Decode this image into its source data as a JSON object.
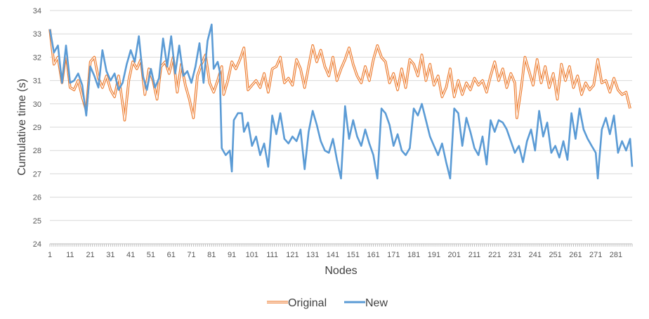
{
  "chart_data": {
    "type": "line",
    "xlabel": "Nodes",
    "ylabel": "Cumulative time (s)",
    "xlim": [
      1,
      289
    ],
    "ylim": [
      24,
      34
    ],
    "ytick_step": 1,
    "x_tick_labels": [
      "1",
      "11",
      "21",
      "31",
      "41",
      "51",
      "61",
      "71",
      "81",
      "91",
      "101",
      "111",
      "121",
      "131",
      "141",
      "151",
      "161",
      "171",
      "181",
      "191",
      "201",
      "211",
      "221",
      "231",
      "241",
      "251",
      "261",
      "271",
      "281"
    ],
    "legend_position": "bottom",
    "grid": true,
    "series": [
      {
        "name": "Original",
        "color": "#ED7D31",
        "style": "double-line",
        "keypoints": [
          [
            1,
            33.2
          ],
          [
            3,
            31.7
          ],
          [
            5,
            32.0
          ],
          [
            7,
            30.9
          ],
          [
            9,
            32.2
          ],
          [
            11,
            30.7
          ],
          [
            13,
            30.6
          ],
          [
            15,
            31.0
          ],
          [
            17,
            30.3
          ],
          [
            19,
            29.7
          ],
          [
            21,
            31.8
          ],
          [
            23,
            32.0
          ],
          [
            25,
            31.1
          ],
          [
            27,
            30.7
          ],
          [
            29,
            31.2
          ],
          [
            31,
            30.6
          ],
          [
            33,
            30.3
          ],
          [
            35,
            31.2
          ],
          [
            37,
            30.0
          ],
          [
            38,
            29.3
          ],
          [
            40,
            31.0
          ],
          [
            42,
            31.8
          ],
          [
            44,
            31.5
          ],
          [
            46,
            31.9
          ],
          [
            48,
            30.4
          ],
          [
            50,
            31.5
          ],
          [
            52,
            31.0
          ],
          [
            54,
            30.2
          ],
          [
            56,
            31.6
          ],
          [
            58,
            31.8
          ],
          [
            60,
            31.3
          ],
          [
            62,
            32.0
          ],
          [
            64,
            30.5
          ],
          [
            66,
            31.7
          ],
          [
            68,
            30.8
          ],
          [
            70,
            30.2
          ],
          [
            72,
            29.4
          ],
          [
            74,
            31.2
          ],
          [
            76,
            31.7
          ],
          [
            78,
            32.1
          ],
          [
            80,
            30.9
          ],
          [
            82,
            30.5
          ],
          [
            84,
            31.0
          ],
          [
            86,
            31.6
          ],
          [
            87,
            30.4
          ],
          [
            89,
            31.0
          ],
          [
            91,
            31.8
          ],
          [
            93,
            31.5
          ],
          [
            95,
            31.9
          ],
          [
            97,
            32.4
          ],
          [
            99,
            30.6
          ],
          [
            101,
            30.8
          ],
          [
            103,
            31.0
          ],
          [
            105,
            30.7
          ],
          [
            107,
            31.3
          ],
          [
            109,
            30.5
          ],
          [
            111,
            31.5
          ],
          [
            113,
            31.6
          ],
          [
            115,
            32.0
          ],
          [
            117,
            30.9
          ],
          [
            119,
            31.1
          ],
          [
            121,
            30.8
          ],
          [
            123,
            31.9
          ],
          [
            125,
            31.5
          ],
          [
            127,
            30.7
          ],
          [
            129,
            31.6
          ],
          [
            131,
            32.5
          ],
          [
            133,
            31.8
          ],
          [
            135,
            32.3
          ],
          [
            137,
            31.6
          ],
          [
            139,
            31.2
          ],
          [
            141,
            32.0
          ],
          [
            143,
            31.0
          ],
          [
            145,
            31.5
          ],
          [
            147,
            31.9
          ],
          [
            149,
            32.4
          ],
          [
            151,
            31.7
          ],
          [
            153,
            31.2
          ],
          [
            155,
            30.9
          ],
          [
            157,
            31.6
          ],
          [
            159,
            31.0
          ],
          [
            161,
            31.9
          ],
          [
            163,
            32.5
          ],
          [
            165,
            32.0
          ],
          [
            167,
            31.8
          ],
          [
            169,
            30.9
          ],
          [
            171,
            31.3
          ],
          [
            173,
            30.6
          ],
          [
            175,
            31.5
          ],
          [
            177,
            30.7
          ],
          [
            179,
            31.9
          ],
          [
            181,
            31.7
          ],
          [
            183,
            31.2
          ],
          [
            185,
            32.1
          ],
          [
            187,
            31.0
          ],
          [
            189,
            31.7
          ],
          [
            191,
            30.8
          ],
          [
            193,
            31.2
          ],
          [
            195,
            30.3
          ],
          [
            197,
            30.7
          ],
          [
            199,
            31.5
          ],
          [
            201,
            30.3
          ],
          [
            203,
            31.0
          ],
          [
            205,
            30.4
          ],
          [
            207,
            30.9
          ],
          [
            209,
            30.6
          ],
          [
            211,
            31.1
          ],
          [
            213,
            30.8
          ],
          [
            215,
            31.0
          ],
          [
            217,
            30.5
          ],
          [
            219,
            31.2
          ],
          [
            221,
            31.8
          ],
          [
            223,
            31.0
          ],
          [
            225,
            31.5
          ],
          [
            227,
            30.7
          ],
          [
            229,
            31.3
          ],
          [
            231,
            30.9
          ],
          [
            232,
            29.4
          ],
          [
            234,
            30.6
          ],
          [
            236,
            32.0
          ],
          [
            238,
            31.4
          ],
          [
            240,
            30.8
          ],
          [
            242,
            31.9
          ],
          [
            244,
            30.9
          ],
          [
            246,
            31.6
          ],
          [
            248,
            30.7
          ],
          [
            250,
            31.3
          ],
          [
            252,
            30.2
          ],
          [
            254,
            31.7
          ],
          [
            256,
            31.0
          ],
          [
            258,
            31.6
          ],
          [
            260,
            30.7
          ],
          [
            262,
            31.2
          ],
          [
            264,
            30.4
          ],
          [
            266,
            30.9
          ],
          [
            268,
            30.6
          ],
          [
            270,
            30.8
          ],
          [
            272,
            31.9
          ],
          [
            274,
            30.9
          ],
          [
            276,
            31.0
          ],
          [
            278,
            30.5
          ],
          [
            280,
            31.1
          ],
          [
            282,
            30.6
          ],
          [
            284,
            30.4
          ],
          [
            286,
            30.5
          ],
          [
            288,
            29.8
          ]
        ]
      },
      {
        "name": "New",
        "color": "#5B9BD5",
        "style": "solid",
        "keypoints": [
          [
            1,
            33.2
          ],
          [
            3,
            32.2
          ],
          [
            5,
            32.5
          ],
          [
            7,
            30.9
          ],
          [
            9,
            32.5
          ],
          [
            11,
            30.9
          ],
          [
            13,
            31.0
          ],
          [
            15,
            31.3
          ],
          [
            17,
            30.8
          ],
          [
            19,
            29.5
          ],
          [
            21,
            31.6
          ],
          [
            23,
            31.2
          ],
          [
            25,
            30.7
          ],
          [
            27,
            32.3
          ],
          [
            29,
            31.4
          ],
          [
            31,
            31.0
          ],
          [
            33,
            31.3
          ],
          [
            35,
            30.6
          ],
          [
            37,
            30.9
          ],
          [
            39,
            31.7
          ],
          [
            41,
            32.3
          ],
          [
            43,
            31.8
          ],
          [
            45,
            32.9
          ],
          [
            47,
            31.2
          ],
          [
            49,
            30.6
          ],
          [
            51,
            31.5
          ],
          [
            53,
            30.7
          ],
          [
            55,
            31.1
          ],
          [
            57,
            32.8
          ],
          [
            59,
            31.6
          ],
          [
            61,
            32.9
          ],
          [
            63,
            31.3
          ],
          [
            65,
            32.5
          ],
          [
            67,
            31.2
          ],
          [
            69,
            31.4
          ],
          [
            71,
            30.9
          ],
          [
            73,
            31.6
          ],
          [
            75,
            32.6
          ],
          [
            77,
            30.9
          ],
          [
            79,
            32.7
          ],
          [
            81,
            33.4
          ],
          [
            82,
            31.5
          ],
          [
            84,
            31.8
          ],
          [
            85,
            31.4
          ],
          [
            86,
            28.1
          ],
          [
            88,
            27.8
          ],
          [
            90,
            28.0
          ],
          [
            91,
            27.1
          ],
          [
            92,
            29.3
          ],
          [
            94,
            29.6
          ],
          [
            96,
            29.6
          ],
          [
            97,
            28.8
          ],
          [
            99,
            29.2
          ],
          [
            101,
            28.2
          ],
          [
            103,
            28.6
          ],
          [
            105,
            27.8
          ],
          [
            107,
            28.3
          ],
          [
            109,
            27.3
          ],
          [
            111,
            29.5
          ],
          [
            113,
            28.7
          ],
          [
            115,
            29.6
          ],
          [
            117,
            28.5
          ],
          [
            119,
            28.3
          ],
          [
            121,
            28.6
          ],
          [
            123,
            28.4
          ],
          [
            125,
            28.9
          ],
          [
            127,
            27.2
          ],
          [
            129,
            28.8
          ],
          [
            131,
            29.7
          ],
          [
            133,
            29.1
          ],
          [
            135,
            28.4
          ],
          [
            137,
            28.0
          ],
          [
            139,
            27.9
          ],
          [
            141,
            28.5
          ],
          [
            143,
            27.6
          ],
          [
            145,
            26.8
          ],
          [
            147,
            29.9
          ],
          [
            149,
            28.5
          ],
          [
            151,
            29.3
          ],
          [
            153,
            28.6
          ],
          [
            155,
            28.2
          ],
          [
            157,
            28.9
          ],
          [
            159,
            28.3
          ],
          [
            161,
            27.8
          ],
          [
            163,
            26.8
          ],
          [
            165,
            29.8
          ],
          [
            167,
            29.6
          ],
          [
            169,
            29.1
          ],
          [
            171,
            28.2
          ],
          [
            173,
            28.7
          ],
          [
            175,
            28.0
          ],
          [
            177,
            27.8
          ],
          [
            179,
            28.1
          ],
          [
            181,
            29.8
          ],
          [
            183,
            29.5
          ],
          [
            185,
            30.0
          ],
          [
            187,
            29.3
          ],
          [
            189,
            28.6
          ],
          [
            191,
            28.2
          ],
          [
            193,
            27.8
          ],
          [
            195,
            28.3
          ],
          [
            197,
            27.5
          ],
          [
            199,
            26.8
          ],
          [
            201,
            29.8
          ],
          [
            203,
            29.6
          ],
          [
            205,
            28.2
          ],
          [
            207,
            29.4
          ],
          [
            209,
            28.8
          ],
          [
            211,
            28.1
          ],
          [
            213,
            27.8
          ],
          [
            215,
            28.6
          ],
          [
            217,
            27.4
          ],
          [
            219,
            29.3
          ],
          [
            221,
            28.8
          ],
          [
            223,
            29.3
          ],
          [
            225,
            29.2
          ],
          [
            227,
            28.9
          ],
          [
            229,
            28.4
          ],
          [
            231,
            27.9
          ],
          [
            233,
            28.2
          ],
          [
            235,
            27.5
          ],
          [
            237,
            28.4
          ],
          [
            239,
            28.9
          ],
          [
            241,
            28.0
          ],
          [
            243,
            29.7
          ],
          [
            245,
            28.6
          ],
          [
            247,
            29.2
          ],
          [
            249,
            27.9
          ],
          [
            251,
            28.2
          ],
          [
            253,
            27.7
          ],
          [
            255,
            28.4
          ],
          [
            257,
            27.6
          ],
          [
            259,
            29.6
          ],
          [
            261,
            28.5
          ],
          [
            263,
            29.8
          ],
          [
            265,
            28.9
          ],
          [
            267,
            28.5
          ],
          [
            269,
            28.2
          ],
          [
            271,
            27.9
          ],
          [
            272,
            26.8
          ],
          [
            274,
            28.9
          ],
          [
            276,
            29.4
          ],
          [
            278,
            28.7
          ],
          [
            280,
            29.5
          ],
          [
            282,
            27.9
          ],
          [
            284,
            28.4
          ],
          [
            286,
            28.0
          ],
          [
            288,
            28.5
          ],
          [
            289,
            27.3
          ]
        ]
      }
    ]
  }
}
